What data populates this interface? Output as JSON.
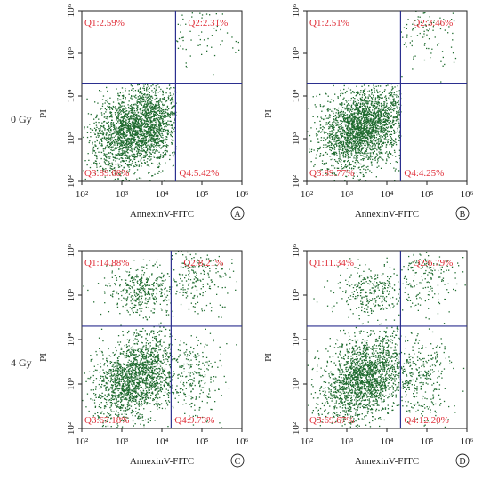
{
  "chart_data": [
    {
      "type": "scatter",
      "panel": "A",
      "row_label": "0 Gy",
      "xlabel": "AnnexinV-FITC",
      "ylabel": "PI",
      "xscale": "log",
      "yscale": "log",
      "xlim": [
        100,
        1000000
      ],
      "ylim": [
        100,
        1000000
      ],
      "x_ticks": [
        "10²",
        "10³",
        "10⁴",
        "10⁵",
        "10⁶"
      ],
      "y_ticks": [
        "10²",
        "10³",
        "10⁴",
        "10⁵",
        "10⁶"
      ],
      "gate_x": 22000,
      "gate_y": 20000,
      "quadrants": [
        {
          "name": "Q1",
          "label": "Q1:2.59%",
          "percent": 2.59
        },
        {
          "name": "Q2",
          "label": "Q2:2.31%",
          "percent": 2.31
        },
        {
          "name": "Q3",
          "label": "Q3:89.68%",
          "percent": 89.68
        },
        {
          "name": "Q4",
          "label": "Q4:5.42%",
          "percent": 5.42
        }
      ],
      "clusters": [
        {
          "quadrant": "Q3",
          "center": [
            2400,
            1800
          ],
          "spread": [
            0.55,
            0.5
          ]
        },
        {
          "quadrant": "Q2",
          "center": [
            80000,
            300000
          ],
          "spread": [
            0.45,
            0.45
          ]
        }
      ]
    },
    {
      "type": "scatter",
      "panel": "B",
      "row_label": "",
      "xlabel": "AnnexinV-FITC",
      "ylabel": "PI",
      "xscale": "log",
      "yscale": "log",
      "xlim": [
        100,
        1000000
      ],
      "ylim": [
        100,
        1000000
      ],
      "x_ticks": [
        "10²",
        "10³",
        "10⁴",
        "10⁵",
        "10⁶"
      ],
      "y_ticks": [
        "10²",
        "10³",
        "10⁴",
        "10⁵",
        "10⁶"
      ],
      "gate_x": 22000,
      "gate_y": 20000,
      "quadrants": [
        {
          "name": "Q1",
          "label": "Q1:2.51%",
          "percent": 2.51
        },
        {
          "name": "Q2",
          "label": "Q2:3.46%",
          "percent": 3.46
        },
        {
          "name": "Q3",
          "label": "Q3:89.77%",
          "percent": 89.77
        },
        {
          "name": "Q4",
          "label": "Q4:4.25%",
          "percent": 4.25
        }
      ],
      "clusters": [
        {
          "quadrant": "Q3",
          "center": [
            2500,
            1900
          ],
          "spread": [
            0.55,
            0.5
          ]
        },
        {
          "quadrant": "Q2",
          "center": [
            90000,
            350000
          ],
          "spread": [
            0.45,
            0.45
          ]
        }
      ]
    },
    {
      "type": "scatter",
      "panel": "C",
      "row_label": "4 Gy",
      "xlabel": "AnnexinV-FITC",
      "ylabel": "PI",
      "xscale": "log",
      "yscale": "log",
      "xlim": [
        100,
        1000000
      ],
      "ylim": [
        100,
        1000000
      ],
      "x_ticks": [
        "10²",
        "10³",
        "10⁴",
        "10⁵",
        "10⁶"
      ],
      "y_ticks": [
        "10²",
        "10³",
        "10⁴",
        "10⁵",
        "10⁶"
      ],
      "gate_x": 17000,
      "gate_y": 20000,
      "quadrants": [
        {
          "name": "Q1",
          "label": "Q1:14.88%",
          "percent": 14.88
        },
        {
          "name": "Q2",
          "label": "Q2:8.21%",
          "percent": 8.21
        },
        {
          "name": "Q3",
          "label": "Q3:67.18%",
          "percent": 67.18
        },
        {
          "name": "Q4",
          "label": "Q4:9.73%",
          "percent": 9.73
        }
      ],
      "clusters": [
        {
          "quadrant": "Q3",
          "center": [
            2300,
            1500
          ],
          "spread": [
            0.5,
            0.5
          ]
        },
        {
          "quadrant": "Q1",
          "center": [
            3000,
            120000
          ],
          "spread": [
            0.45,
            0.3
          ]
        },
        {
          "quadrant": "Q2",
          "center": [
            70000,
            250000
          ],
          "spread": [
            0.45,
            0.45
          ]
        },
        {
          "quadrant": "Q4",
          "center": [
            50000,
            1500
          ],
          "spread": [
            0.4,
            0.5
          ]
        }
      ]
    },
    {
      "type": "scatter",
      "panel": "D",
      "row_label": "",
      "xlabel": "AnnexinV-FITC",
      "ylabel": "PI",
      "xscale": "log",
      "yscale": "log",
      "xlim": [
        100,
        1000000
      ],
      "ylim": [
        100,
        1000000
      ],
      "x_ticks": [
        "10²",
        "10³",
        "10⁴",
        "10⁵",
        "10⁶"
      ],
      "y_ticks": [
        "10²",
        "10³",
        "10⁴",
        "10⁵",
        "10⁶"
      ],
      "gate_x": 22000,
      "gate_y": 20000,
      "quadrants": [
        {
          "name": "Q1",
          "label": "Q1:11.34%",
          "percent": 11.34
        },
        {
          "name": "Q2",
          "label": "Q2:6.79%",
          "percent": 6.79
        },
        {
          "name": "Q3",
          "label": "Q3:69.67%",
          "percent": 69.67
        },
        {
          "name": "Q4",
          "label": "Q4:12.20%",
          "percent": 12.2
        }
      ],
      "clusters": [
        {
          "quadrant": "Q3",
          "center": [
            2600,
            1400
          ],
          "spread": [
            0.5,
            0.5
          ]
        },
        {
          "quadrant": "Q1",
          "center": [
            4000,
            110000
          ],
          "spread": [
            0.45,
            0.3
          ]
        },
        {
          "quadrant": "Q2",
          "center": [
            80000,
            250000
          ],
          "spread": [
            0.45,
            0.45
          ]
        },
        {
          "quadrant": "Q4",
          "center": [
            60000,
            1400
          ],
          "spread": [
            0.4,
            0.5
          ]
        }
      ]
    }
  ],
  "colors": {
    "points": "#1f6b2f",
    "gate_lines": "#2b2f8f",
    "quadrant_labels": "#e0303a",
    "axes": "#222222"
  }
}
